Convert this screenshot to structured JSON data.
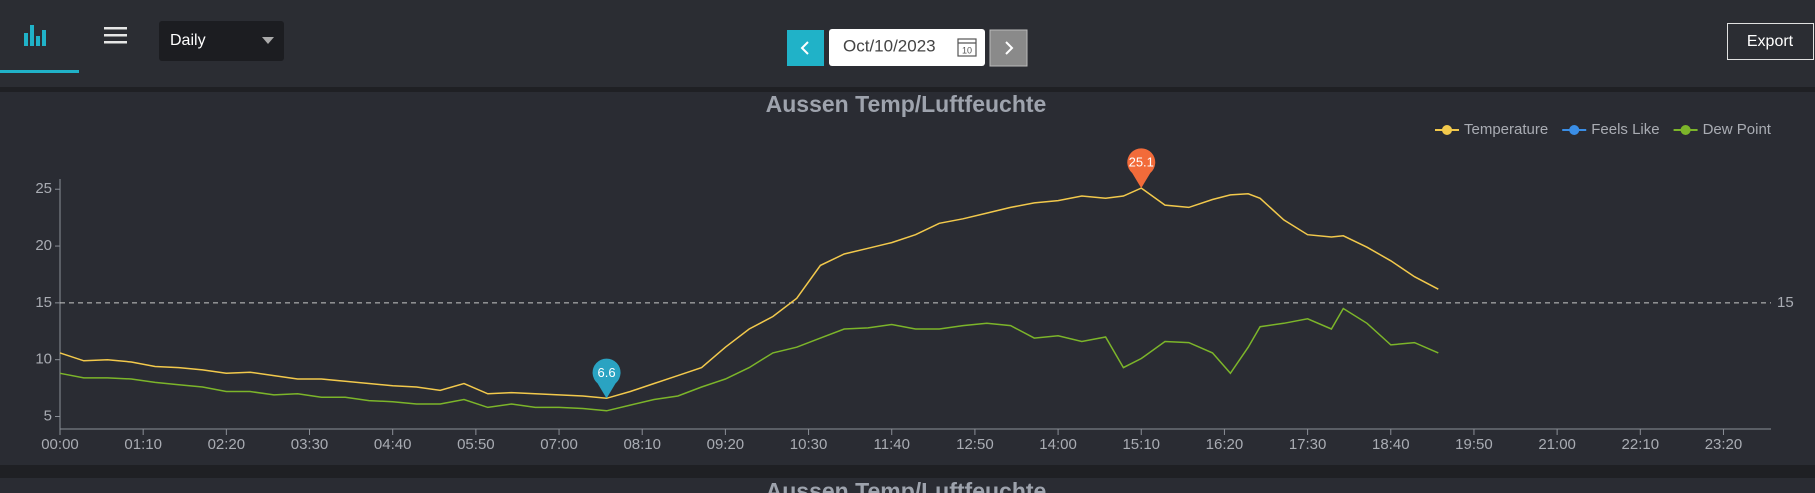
{
  "toolbar": {
    "period": "Daily",
    "date": "Oct/10/2023",
    "calendar_day": "10",
    "export": "Export"
  },
  "chart_data": {
    "type": "line",
    "title": "Aussen Temp/Luftfeuchte",
    "x": [
      0,
      20,
      40,
      60,
      80,
      100,
      120,
      140,
      160,
      180,
      200,
      220,
      240,
      260,
      280,
      300,
      320,
      340,
      360,
      380,
      400,
      420,
      440,
      460,
      480,
      500,
      520,
      540,
      560,
      580,
      600,
      620,
      640,
      660,
      680,
      700,
      720,
      740,
      760,
      780,
      800,
      820,
      840,
      860,
      880,
      895,
      910,
      930,
      950,
      970,
      985,
      1000,
      1010,
      1030,
      1050,
      1070,
      1080,
      1100,
      1120,
      1140,
      1160
    ],
    "series": [
      {
        "name": "Temperature",
        "color": "#f2c94c",
        "values": [
          10.6,
          9.9,
          10.0,
          9.8,
          9.4,
          9.3,
          9.1,
          8.8,
          8.9,
          8.6,
          8.3,
          8.3,
          8.1,
          7.9,
          7.7,
          7.6,
          7.3,
          7.9,
          7.0,
          7.1,
          7.0,
          6.9,
          6.8,
          6.6,
          7.2,
          7.9,
          8.6,
          9.3,
          11.1,
          12.7,
          13.8,
          15.4,
          18.3,
          19.3,
          19.8,
          20.3,
          21.0,
          22.0,
          22.4,
          22.9,
          23.4,
          23.8,
          24.0,
          24.4,
          24.2,
          24.4,
          25.1,
          23.6,
          23.4,
          24.1,
          24.5,
          24.6,
          24.2,
          22.3,
          21.0,
          20.8,
          20.9,
          19.9,
          18.7,
          17.3,
          16.2
        ]
      },
      {
        "name": "Feels Like",
        "color": "#3a8ee6",
        "values": [
          null,
          null,
          null,
          null,
          null,
          null,
          null,
          null,
          null,
          null,
          null,
          null,
          null,
          null,
          null,
          null,
          null,
          null,
          null,
          null,
          null,
          null,
          null,
          null,
          null,
          null,
          null,
          null,
          null,
          null,
          null,
          null,
          null,
          null,
          null,
          null,
          null,
          null,
          null,
          null,
          null,
          null,
          null,
          null,
          null,
          null,
          null,
          null,
          null,
          null,
          null,
          null,
          null,
          null,
          null,
          null,
          null,
          null,
          null,
          null,
          null
        ]
      },
      {
        "name": "Dew Point",
        "color": "#7cb52a",
        "values": [
          8.8,
          8.4,
          8.4,
          8.3,
          8.0,
          7.8,
          7.6,
          7.2,
          7.2,
          6.9,
          7.0,
          6.7,
          6.7,
          6.4,
          6.3,
          6.1,
          6.1,
          6.5,
          5.8,
          6.1,
          5.8,
          5.8,
          5.7,
          5.5,
          6.0,
          6.5,
          6.8,
          7.6,
          8.3,
          9.3,
          10.6,
          11.1,
          11.9,
          12.7,
          12.8,
          13.1,
          12.7,
          12.7,
          13.0,
          13.2,
          13.0,
          11.9,
          12.1,
          11.6,
          12.0,
          9.3,
          10.1,
          11.6,
          11.5,
          10.6,
          8.8,
          11.1,
          12.9,
          13.2,
          13.6,
          12.7,
          14.5,
          13.2,
          11.3,
          11.5,
          10.6
        ]
      }
    ],
    "xlim": [
      0,
      1440
    ],
    "xticks": [
      {
        "value": 0,
        "label": "00:00"
      },
      {
        "value": 70,
        "label": "01:10"
      },
      {
        "value": 140,
        "label": "02:20"
      },
      {
        "value": 210,
        "label": "03:30"
      },
      {
        "value": 280,
        "label": "04:40"
      },
      {
        "value": 350,
        "label": "05:50"
      },
      {
        "value": 420,
        "label": "07:00"
      },
      {
        "value": 490,
        "label": "08:10"
      },
      {
        "value": 560,
        "label": "09:20"
      },
      {
        "value": 630,
        "label": "10:30"
      },
      {
        "value": 700,
        "label": "11:40"
      },
      {
        "value": 770,
        "label": "12:50"
      },
      {
        "value": 840,
        "label": "14:00"
      },
      {
        "value": 910,
        "label": "15:10"
      },
      {
        "value": 980,
        "label": "16:20"
      },
      {
        "value": 1050,
        "label": "17:30"
      },
      {
        "value": 1120,
        "label": "18:40"
      },
      {
        "value": 1190,
        "label": "19:50"
      },
      {
        "value": 1260,
        "label": "21:00"
      },
      {
        "value": 1330,
        "label": "22:10"
      },
      {
        "value": 1400,
        "label": "23:20"
      }
    ],
    "ylim": [
      3.9,
      25.9
    ],
    "yticks": [
      5,
      10,
      15,
      20,
      25
    ],
    "reference_line": 15,
    "pin_colors": {
      "min": "#2aa3c2",
      "max": "#f26b3a"
    },
    "legend": "top-right"
  },
  "next_panel": {
    "title": "Aussen Temp/Luftfeuchte"
  }
}
